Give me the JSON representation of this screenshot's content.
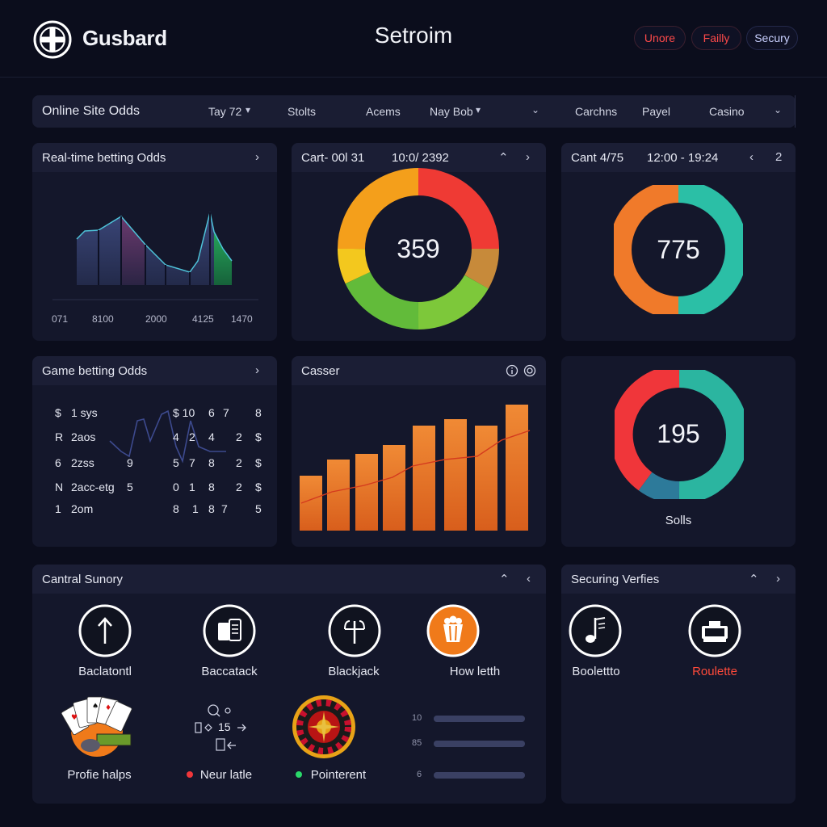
{
  "header": {
    "brand": "Gusbard",
    "title": "Setroim",
    "actions": [
      "Unore",
      "Failly",
      "Secury"
    ]
  },
  "nav": {
    "title": "Online Site Odds",
    "items": [
      "Tay 72",
      "Stolts",
      "Acems",
      "Nay Bob",
      "Carchns",
      "Payel",
      "Casino"
    ]
  },
  "realtime": {
    "title": "Real-time betting Odds",
    "ticks": [
      "071",
      "8100",
      "2000",
      "4125",
      "1470"
    ]
  },
  "cart1": {
    "title": "Cart- 00l 31",
    "time": "10:0/ 2392",
    "value": "359"
  },
  "cart2": {
    "title": "Cant 4/75",
    "time": "12:00 - 19:24",
    "page": "2",
    "value": "775"
  },
  "game_odds": {
    "title": "Game betting Odds",
    "rows": [
      {
        "c1": "$",
        "c2": "1 sys",
        "c3": "",
        "c4": "$ 10",
        "c5": "6",
        "c6": "7",
        "c7": "",
        "c8": "8"
      },
      {
        "c1": "R",
        "c2": "2aos",
        "c3": "",
        "c4": "4",
        "c5": "2",
        "c6": "4",
        "c7": "2",
        "c8": "$"
      },
      {
        "c1": "6",
        "c2": "2zss",
        "c3": "9",
        "c4": "5",
        "c5": "7",
        "c6": "8",
        "c7": "2",
        "c8": "$"
      },
      {
        "c1": "N",
        "c2": "2acc-etg",
        "c3": "5",
        "c4": "0",
        "c5": "1",
        "c6": "8",
        "c7": "2",
        "c8": "$"
      },
      {
        "c1": "1",
        "c2": "2om",
        "c3": "",
        "c4": "8",
        "c5": "1",
        "c6": "8",
        "c7": "7",
        "c8": "5"
      }
    ]
  },
  "casser": {
    "title": "Casser"
  },
  "solls": {
    "value": "195",
    "label": "Solls"
  },
  "central": {
    "title": "Cantral Sunory",
    "games": [
      "Baclatontl",
      "Baccatack",
      "Blackjack",
      "How letth"
    ],
    "row2": {
      "cards_label": "Profie halps",
      "middle_text": "15",
      "middle_label": "Neur latle",
      "roulette_label": "Pointerent",
      "bar_nums": [
        "10",
        "85",
        "6"
      ],
      "bar_values": [
        100,
        100,
        100
      ]
    }
  },
  "security": {
    "title": "Securing Verfies",
    "items": [
      "Boolettto",
      "Roulette"
    ]
  },
  "colors": {
    "background": "#0b0d1c",
    "panel": "#14172b",
    "accent_orange": "#f07a2a",
    "teal": "#2bb5a0",
    "red": "#f0363a"
  }
}
